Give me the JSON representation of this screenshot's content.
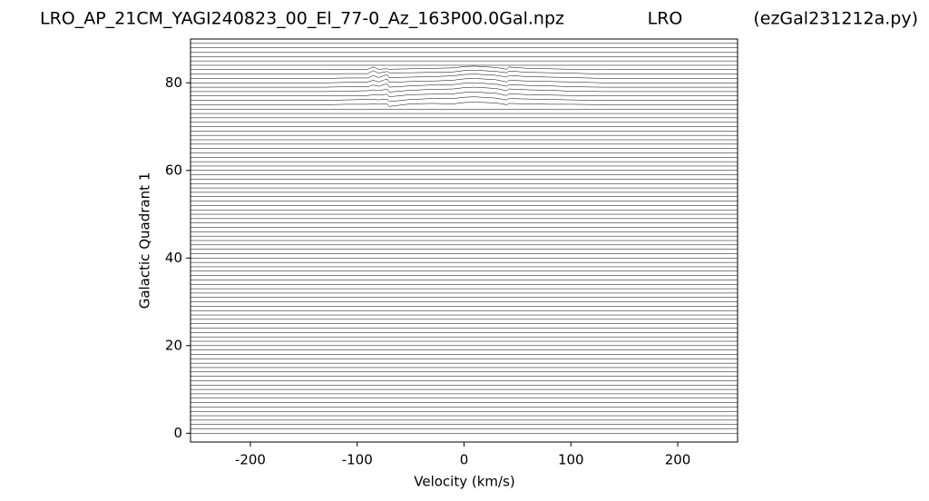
{
  "chart_data": {
    "type": "line",
    "title": "LRO_AP_21CM_YAGI240823_00_El_77-0_Az_163P00.0Gal.npz",
    "subtitle": "LRO",
    "annotation": "(ezGal231212a.py)",
    "x_label": "Velocity (km/s)",
    "y_label": "Galactic Quadrant 1",
    "xlim": [
      -256,
      256
    ],
    "ylim": [
      -2,
      90
    ],
    "xticks": [
      -200,
      -100,
      0,
      100,
      200
    ],
    "yticks": [
      0,
      20,
      40,
      60,
      80
    ],
    "color": "#000000",
    "series": [
      {
        "x": [
          -256,
          256
        ],
        "values": [
          0,
          0
        ]
      },
      {
        "x": [
          -256,
          256
        ],
        "values": [
          1,
          1
        ]
      },
      {
        "x": [
          -256,
          256
        ],
        "values": [
          2,
          2
        ]
      },
      {
        "x": [
          -256,
          256
        ],
        "values": [
          3,
          3
        ]
      },
      {
        "x": [
          -256,
          256
        ],
        "values": [
          4,
          4
        ]
      },
      {
        "x": [
          -256,
          256
        ],
        "values": [
          5,
          5
        ]
      },
      {
        "x": [
          -256,
          256
        ],
        "values": [
          6,
          6
        ]
      },
      {
        "x": [
          -256,
          256
        ],
        "values": [
          7,
          7
        ]
      },
      {
        "x": [
          -256,
          256
        ],
        "values": [
          8,
          8
        ]
      },
      {
        "x": [
          -256,
          256
        ],
        "values": [
          9,
          9
        ]
      },
      {
        "x": [
          -256,
          256
        ],
        "values": [
          10,
          10
        ]
      },
      {
        "x": [
          -256,
          256
        ],
        "values": [
          11,
          11
        ]
      },
      {
        "x": [
          -256,
          256
        ],
        "values": [
          12,
          12
        ]
      },
      {
        "x": [
          -256,
          256
        ],
        "values": [
          13,
          13
        ]
      },
      {
        "x": [
          -256,
          256
        ],
        "values": [
          14,
          14
        ]
      },
      {
        "x": [
          -256,
          256
        ],
        "values": [
          15,
          15
        ]
      },
      {
        "x": [
          -256,
          256
        ],
        "values": [
          16,
          16
        ]
      },
      {
        "x": [
          -256,
          256
        ],
        "values": [
          17,
          17
        ]
      },
      {
        "x": [
          -256,
          256
        ],
        "values": [
          18,
          18
        ]
      },
      {
        "x": [
          -256,
          256
        ],
        "values": [
          19,
          19
        ]
      },
      {
        "x": [
          -256,
          256
        ],
        "values": [
          20,
          20
        ]
      },
      {
        "x": [
          -256,
          256
        ],
        "values": [
          21,
          21
        ]
      },
      {
        "x": [
          -256,
          256
        ],
        "values": [
          22,
          22
        ]
      },
      {
        "x": [
          -256,
          256
        ],
        "values": [
          23,
          23
        ]
      },
      {
        "x": [
          -256,
          256
        ],
        "values": [
          24,
          24
        ]
      },
      {
        "x": [
          -256,
          256
        ],
        "values": [
          25,
          25
        ]
      },
      {
        "x": [
          -256,
          256
        ],
        "values": [
          26,
          26
        ]
      },
      {
        "x": [
          -256,
          256
        ],
        "values": [
          27,
          27
        ]
      },
      {
        "x": [
          -256,
          256
        ],
        "values": [
          28,
          28
        ]
      },
      {
        "x": [
          -256,
          256
        ],
        "values": [
          29,
          29
        ]
      },
      {
        "x": [
          -256,
          256
        ],
        "values": [
          30,
          30
        ]
      },
      {
        "x": [
          -256,
          256
        ],
        "values": [
          31,
          31
        ]
      },
      {
        "x": [
          -256,
          256
        ],
        "values": [
          32,
          32
        ]
      },
      {
        "x": [
          -256,
          256
        ],
        "values": [
          33,
          33
        ]
      },
      {
        "x": [
          -256,
          256
        ],
        "values": [
          34,
          34
        ]
      },
      {
        "x": [
          -256,
          256
        ],
        "values": [
          35,
          35
        ]
      },
      {
        "x": [
          -256,
          256
        ],
        "values": [
          36,
          36
        ]
      },
      {
        "x": [
          -256,
          256
        ],
        "values": [
          37,
          37
        ]
      },
      {
        "x": [
          -256,
          256
        ],
        "values": [
          38,
          38
        ]
      },
      {
        "x": [
          -256,
          256
        ],
        "values": [
          39,
          39
        ]
      },
      {
        "x": [
          -256,
          256
        ],
        "values": [
          40,
          40
        ]
      },
      {
        "x": [
          -256,
          256
        ],
        "values": [
          41,
          41
        ]
      },
      {
        "x": [
          -256,
          256
        ],
        "values": [
          42,
          42
        ]
      },
      {
        "x": [
          -256,
          256
        ],
        "values": [
          43,
          43
        ]
      },
      {
        "x": [
          -256,
          256
        ],
        "values": [
          44,
          44
        ]
      },
      {
        "x": [
          -256,
          256
        ],
        "values": [
          45,
          45
        ]
      },
      {
        "x": [
          -256,
          256
        ],
        "values": [
          46,
          46
        ]
      },
      {
        "x": [
          -256,
          256
        ],
        "values": [
          47,
          47
        ]
      },
      {
        "x": [
          -256,
          256
        ],
        "values": [
          48,
          48
        ]
      },
      {
        "x": [
          -256,
          256
        ],
        "values": [
          49,
          49
        ]
      },
      {
        "x": [
          -256,
          256
        ],
        "values": [
          50,
          50
        ]
      },
      {
        "x": [
          -256,
          256
        ],
        "values": [
          51,
          51
        ]
      },
      {
        "x": [
          -256,
          256
        ],
        "values": [
          52,
          52
        ]
      },
      {
        "x": [
          -256,
          256
        ],
        "values": [
          53,
          53
        ]
      },
      {
        "x": [
          -256,
          256
        ],
        "values": [
          54,
          54
        ]
      },
      {
        "x": [
          -256,
          256
        ],
        "values": [
          55,
          55
        ]
      },
      {
        "x": [
          -256,
          256
        ],
        "values": [
          56,
          56
        ]
      },
      {
        "x": [
          -256,
          256
        ],
        "values": [
          57,
          57
        ]
      },
      {
        "x": [
          -256,
          256
        ],
        "values": [
          58,
          58
        ]
      },
      {
        "x": [
          -256,
          256
        ],
        "values": [
          59,
          59
        ]
      },
      {
        "x": [
          -256,
          256
        ],
        "values": [
          60,
          60
        ]
      },
      {
        "x": [
          -256,
          256
        ],
        "values": [
          61,
          61
        ]
      },
      {
        "x": [
          -256,
          256
        ],
        "values": [
          62,
          62
        ]
      },
      {
        "x": [
          -256,
          256
        ],
        "values": [
          63,
          63
        ]
      },
      {
        "x": [
          -256,
          256
        ],
        "values": [
          64,
          64
        ]
      },
      {
        "x": [
          -256,
          256
        ],
        "values": [
          65,
          65
        ]
      },
      {
        "x": [
          -256,
          256
        ],
        "values": [
          66,
          66
        ]
      },
      {
        "x": [
          -256,
          256
        ],
        "values": [
          67,
          67
        ]
      },
      {
        "x": [
          -256,
          256
        ],
        "values": [
          68,
          68
        ]
      },
      {
        "x": [
          -256,
          256
        ],
        "values": [
          69,
          69
        ]
      },
      {
        "x": [
          -256,
          256
        ],
        "values": [
          70,
          70
        ]
      },
      {
        "x": [
          -256,
          256
        ],
        "values": [
          71,
          71
        ]
      },
      {
        "x": [
          -256,
          256
        ],
        "values": [
          72,
          72
        ]
      },
      {
        "x": [
          -256,
          256
        ],
        "values": [
          73,
          73
        ]
      },
      {
        "x": [
          -256,
          256
        ],
        "values": [
          74,
          74
        ]
      },
      {
        "x": [
          -256,
          -130,
          -110,
          -90,
          -85,
          -80,
          -72,
          -70,
          -50,
          -30,
          -10,
          0,
          10,
          30,
          40,
          42,
          60,
          80,
          100,
          130,
          256
        ],
        "values": [
          75,
          75,
          75.1,
          75.1,
          75.2,
          75.1,
          75.2,
          74.6,
          75.2,
          75.3,
          75.2,
          75.5,
          75.6,
          75.4,
          75,
          75.3,
          75.2,
          75.1,
          75.1,
          75,
          75
        ]
      },
      {
        "x": [
          -256,
          -130,
          -110,
          -90,
          -85,
          -80,
          -72,
          -70,
          -50,
          -30,
          -10,
          0,
          10,
          30,
          40,
          42,
          60,
          80,
          100,
          130,
          256
        ],
        "values": [
          76,
          76,
          76.1,
          76.2,
          76.3,
          76.1,
          76.3,
          75.7,
          76.2,
          76.4,
          76.4,
          76.7,
          76.8,
          76.5,
          76.1,
          76.4,
          76.3,
          76.2,
          76.1,
          76,
          76
        ]
      },
      {
        "x": [
          -256,
          -130,
          -110,
          -90,
          -85,
          -80,
          -72,
          -70,
          -50,
          -30,
          -10,
          0,
          10,
          30,
          40,
          42,
          60,
          80,
          100,
          130,
          256
        ],
        "values": [
          77,
          77,
          77.1,
          77.1,
          77.3,
          77.2,
          77.4,
          76.8,
          77.3,
          77.4,
          77.5,
          77.8,
          77.9,
          77.6,
          77.1,
          77.5,
          77.3,
          77.2,
          77.1,
          77,
          77
        ]
      },
      {
        "x": [
          -256,
          -130,
          -110,
          -90,
          -85,
          -80,
          -72,
          -70,
          -50,
          -30,
          -10,
          0,
          10,
          30,
          40,
          42,
          60,
          80,
          100,
          130,
          256
        ],
        "values": [
          78,
          78,
          78.1,
          78.2,
          78.4,
          78.2,
          78.6,
          77.9,
          78.3,
          78.5,
          78.6,
          78.9,
          79,
          78.7,
          78.2,
          78.6,
          78.4,
          78.3,
          78.1,
          78,
          78
        ]
      },
      {
        "x": [
          -256,
          -130,
          -110,
          -90,
          -85,
          -80,
          -72,
          -70,
          -50,
          -30,
          -10,
          0,
          10,
          30,
          40,
          42,
          60,
          80,
          100,
          130,
          256
        ],
        "values": [
          79,
          79,
          79.1,
          79.1,
          79.5,
          79.2,
          79.8,
          79,
          79.3,
          79.5,
          79.6,
          79.9,
          80,
          79.7,
          79.2,
          79.6,
          79.4,
          79.3,
          79.1,
          79,
          79
        ]
      },
      {
        "x": [
          -256,
          -130,
          -110,
          -90,
          -85,
          -80,
          -72,
          -70,
          -50,
          -30,
          -10,
          0,
          10,
          30,
          40,
          42,
          60,
          80,
          100,
          130,
          256
        ],
        "values": [
          80,
          80,
          80.1,
          80.2,
          80.6,
          80.2,
          80.9,
          80.1,
          80.3,
          80.4,
          80.6,
          80.9,
          81,
          80.7,
          80.2,
          80.6,
          80.4,
          80.3,
          80.2,
          80,
          80
        ]
      },
      {
        "x": [
          -256,
          -130,
          -110,
          -90,
          -85,
          -80,
          -72,
          -70,
          -50,
          -30,
          -10,
          0,
          10,
          30,
          40,
          42,
          60,
          80,
          100,
          130,
          256
        ],
        "values": [
          81,
          81,
          81.1,
          81.1,
          81.7,
          81.2,
          81.9,
          81.2,
          81.3,
          81.4,
          81.6,
          81.9,
          82,
          81.7,
          81.3,
          81.7,
          81.4,
          81.3,
          81.2,
          81,
          81
        ]
      },
      {
        "x": [
          -256,
          -130,
          -110,
          -90,
          -85,
          -80,
          -72,
          -70,
          -50,
          -30,
          -10,
          0,
          10,
          30,
          40,
          42,
          60,
          80,
          100,
          130,
          256
        ],
        "values": [
          82,
          82,
          82.1,
          82.1,
          82.8,
          82.2,
          82.6,
          82.3,
          82.3,
          82.4,
          82.5,
          82.8,
          82.9,
          82.6,
          82.3,
          82.7,
          82.4,
          82.3,
          82.2,
          82,
          82
        ]
      },
      {
        "x": [
          -256,
          -130,
          -110,
          -90,
          -85,
          -80,
          -72,
          -70,
          -50,
          -30,
          -10,
          0,
          10,
          30,
          40,
          42,
          60,
          80,
          100,
          130,
          256
        ],
        "values": [
          83,
          83,
          83.1,
          83.1,
          83.6,
          83.1,
          83.2,
          83.1,
          83.2,
          83.3,
          83.4,
          83.7,
          83.8,
          83.5,
          83.1,
          83.6,
          83.3,
          83.2,
          83.1,
          83,
          83
        ]
      },
      {
        "x": [
          -256,
          256
        ],
        "values": [
          84,
          84
        ]
      },
      {
        "x": [
          -256,
          256
        ],
        "values": [
          85,
          85
        ]
      },
      {
        "x": [
          -256,
          256
        ],
        "values": [
          86,
          86
        ]
      },
      {
        "x": [
          -256,
          256
        ],
        "values": [
          87,
          87
        ]
      },
      {
        "x": [
          -256,
          256
        ],
        "values": [
          88,
          88
        ]
      },
      {
        "x": [
          -256,
          256
        ],
        "values": [
          89,
          89
        ]
      }
    ]
  }
}
